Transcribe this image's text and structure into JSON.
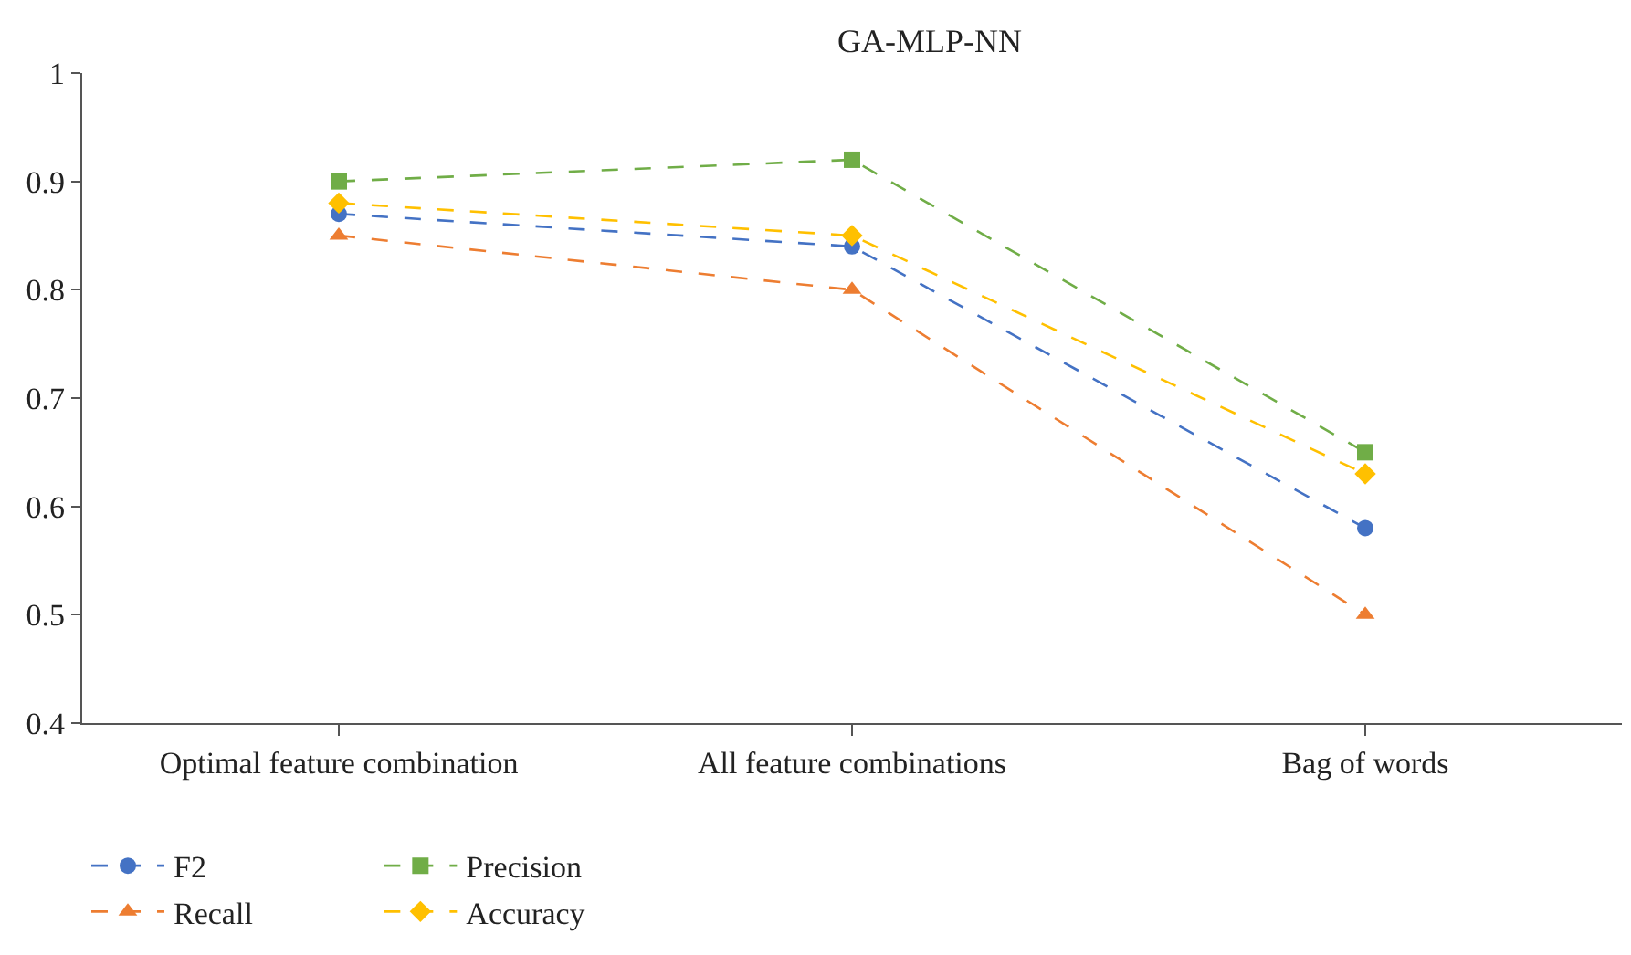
{
  "chart_data": {
    "type": "line",
    "title": "GA-MLP-NN",
    "categories": [
      "Optimal feature combination",
      "All feature combinations",
      "Bag of words"
    ],
    "series": [
      {
        "name": "F2",
        "color": "#4472c4",
        "marker": "circle",
        "values": [
          0.87,
          0.84,
          0.58
        ]
      },
      {
        "name": "Recall",
        "color": "#ed7d31",
        "marker": "triangle",
        "values": [
          0.85,
          0.8,
          0.5
        ]
      },
      {
        "name": "Precision",
        "color": "#70ad47",
        "marker": "square",
        "values": [
          0.9,
          0.92,
          0.65
        ]
      },
      {
        "name": "Accuracy",
        "color": "#ffc000",
        "marker": "diamond",
        "values": [
          0.88,
          0.85,
          0.63
        ]
      }
    ],
    "ylim": [
      0.4,
      1
    ],
    "yticks": [
      0.4,
      0.5,
      0.6,
      0.7,
      0.8,
      0.9,
      1
    ],
    "legend": "bottom left",
    "line_style": "dashed"
  }
}
